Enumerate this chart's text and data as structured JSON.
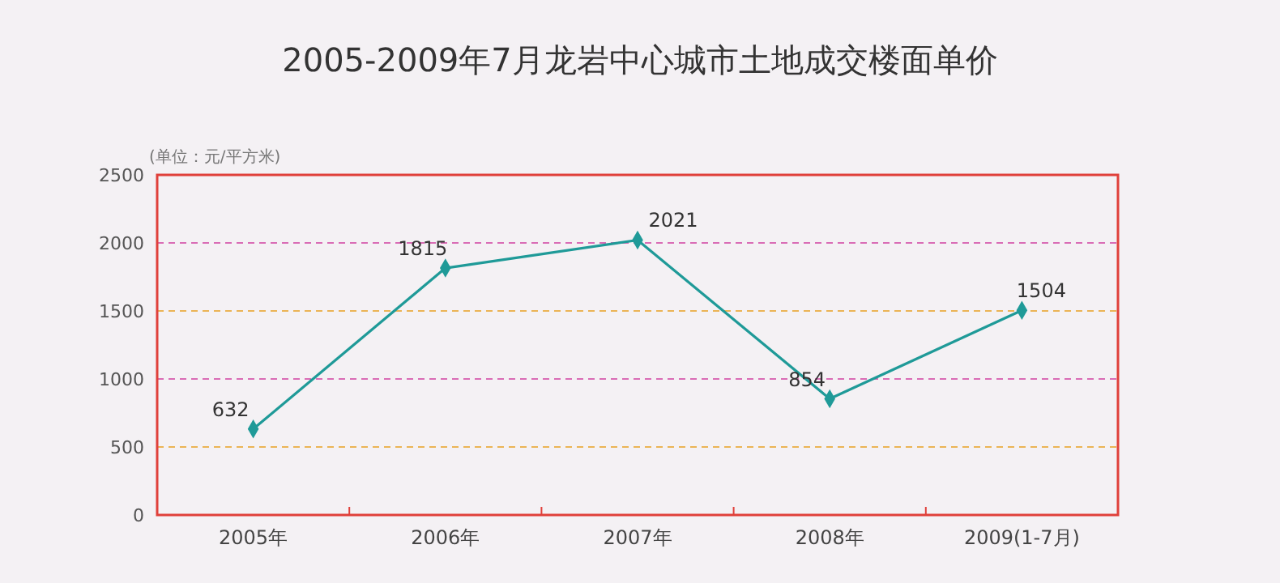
{
  "chart_data": {
    "type": "line",
    "title": "2005-2009年7月龙岩中心城市土地成交楼面单价",
    "ylabel": "(单位：元/平方米)",
    "categories": [
      "2005年",
      "2006年",
      "2007年",
      "2008年",
      "2009(1-7月)"
    ],
    "series": [
      {
        "color": "#1f9a98",
        "values": [
          632,
          1815,
          2021,
          854,
          1504
        ]
      }
    ],
    "ylim": [
      0,
      2500
    ],
    "yticks": [
      0,
      500,
      1000,
      1500,
      2000,
      2500
    ],
    "grid": "y",
    "marker": "diamond",
    "data_labels": true
  }
}
